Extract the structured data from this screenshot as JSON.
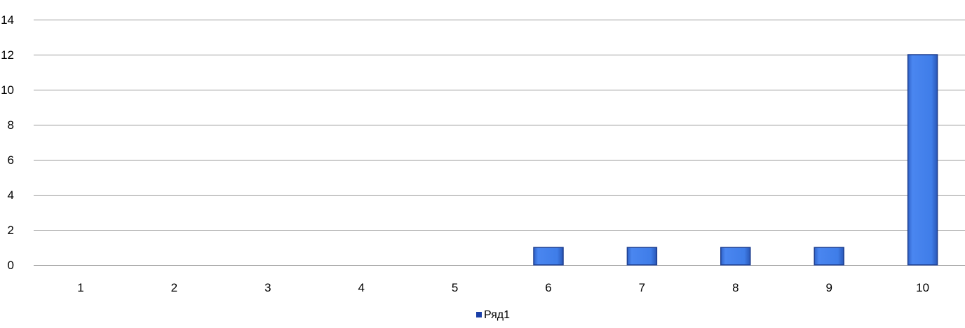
{
  "chart_data": {
    "type": "bar",
    "categories": [
      "1",
      "2",
      "3",
      "4",
      "5",
      "6",
      "7",
      "8",
      "9",
      "10"
    ],
    "series": [
      {
        "name": "Ряд1",
        "values": [
          0,
          0,
          0,
          0,
          0,
          1,
          1,
          1,
          1,
          12
        ],
        "color": "#3d7bea"
      }
    ],
    "title": "",
    "xlabel": "",
    "ylabel": "",
    "ylim": [
      0,
      14
    ],
    "yticks": [
      0,
      2,
      4,
      6,
      8,
      10,
      12,
      14
    ],
    "grid": true,
    "legend": "bottom"
  }
}
